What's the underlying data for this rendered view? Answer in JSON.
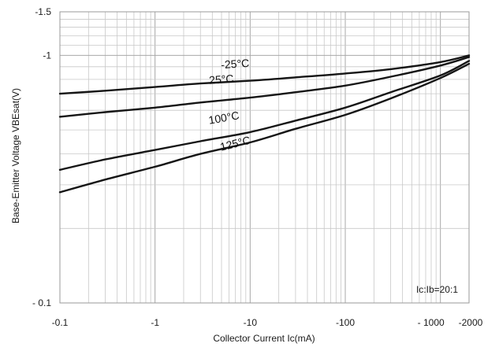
{
  "chart_data": {
    "type": "line",
    "title": "",
    "xlabel": "Collector Current  Ic(mA)",
    "ylabel": "Base-Emitter Voltage  VBEsat(V)",
    "x_scale": "log",
    "y_scale": "log",
    "xlim": [
      -0.1,
      -2000
    ],
    "ylim": [
      -0.1,
      -1.5
    ],
    "grid": true,
    "x_ticks": [
      "-0.1",
      "-1",
      "-10",
      "-100",
      "- 1000",
      "-2000"
    ],
    "x_tick_values": [
      -0.1,
      -1,
      -10,
      -100,
      -1000,
      -2000
    ],
    "y_ticks": [
      "- 0.1",
      "-1",
      "-1.5"
    ],
    "y_tick_values": [
      -0.1,
      -1,
      -1.5
    ],
    "annotation": "Ic:Ib=20:1",
    "series": [
      {
        "name": "-25°C",
        "x": [
          -0.1,
          -0.3,
          -1,
          -3,
          -10,
          -30,
          -100,
          -300,
          -1000,
          -2000
        ],
        "y": [
          -0.7,
          -0.72,
          -0.745,
          -0.77,
          -0.79,
          -0.815,
          -0.845,
          -0.88,
          -0.94,
          -1.0
        ]
      },
      {
        "name": "25°C",
        "x": [
          -0.1,
          -0.3,
          -1,
          -3,
          -10,
          -30,
          -100,
          -300,
          -1000,
          -2000
        ],
        "y": [
          -0.565,
          -0.59,
          -0.615,
          -0.645,
          -0.675,
          -0.71,
          -0.755,
          -0.82,
          -0.91,
          -0.985
        ]
      },
      {
        "name": "100°C",
        "x": [
          -0.1,
          -0.3,
          -1,
          -3,
          -10,
          -30,
          -100,
          -300,
          -1000,
          -2000
        ],
        "y": [
          -0.345,
          -0.38,
          -0.415,
          -0.45,
          -0.49,
          -0.545,
          -0.615,
          -0.71,
          -0.83,
          -0.95
        ]
      },
      {
        "name": "125°C",
        "x": [
          -0.1,
          -0.3,
          -1,
          -3,
          -10,
          -30,
          -100,
          -300,
          -1000,
          -2000
        ],
        "y": [
          -0.28,
          -0.315,
          -0.355,
          -0.4,
          -0.445,
          -0.505,
          -0.575,
          -0.67,
          -0.81,
          -0.925
        ]
      }
    ]
  }
}
